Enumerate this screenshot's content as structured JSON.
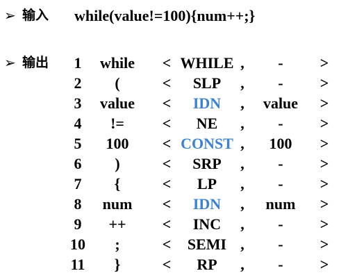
{
  "input": {
    "arrow": "➢",
    "label": "输入",
    "text": "while(value!=100){num++;}"
  },
  "output": {
    "arrow": "➢",
    "label": "输出",
    "lt": "<",
    "comma": ",",
    "gt": ">",
    "highlight_color": "#3b82d6",
    "rows": [
      {
        "num": "1",
        "lexeme": "while",
        "token": "WHILE",
        "value": "-"
      },
      {
        "num": "2",
        "lexeme": "(",
        "token": "SLP",
        "value": "-"
      },
      {
        "num": "3",
        "lexeme": "value",
        "token": "IDN",
        "value": "value"
      },
      {
        "num": "4",
        "lexeme": "!=",
        "token": "NE",
        "value": "-"
      },
      {
        "num": "5",
        "lexeme": "100",
        "token": "CONST",
        "value": "100"
      },
      {
        "num": "6",
        "lexeme": ")",
        "token": "SRP",
        "value": "-"
      },
      {
        "num": "7",
        "lexeme": "{",
        "token": "LP",
        "value": "-"
      },
      {
        "num": "8",
        "lexeme": "num",
        "token": "IDN",
        "value": "num"
      },
      {
        "num": "9",
        "lexeme": "++",
        "token": "INC",
        "value": "-"
      },
      {
        "num": "10",
        "lexeme": ";",
        "token": "SEMI",
        "value": "-"
      },
      {
        "num": "11",
        "lexeme": "}",
        "token": "RP",
        "value": "-"
      }
    ]
  }
}
